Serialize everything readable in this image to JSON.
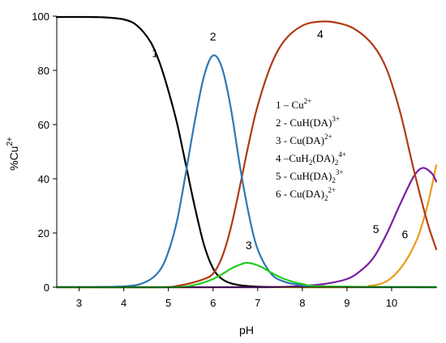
{
  "chart_data": {
    "type": "line",
    "xlabel": "pH",
    "ylabel_main": "%Cu",
    "ylabel_sup": "2+",
    "xlim": [
      2.5,
      11
    ],
    "ylim": [
      0,
      100
    ],
    "xticks": [
      3,
      4,
      5,
      6,
      7,
      8,
      9,
      10
    ],
    "yticks": [
      0,
      20,
      40,
      60,
      80,
      100
    ],
    "grid": false,
    "series": [
      {
        "id": "1",
        "color": "#000000",
        "x": [
          2.5,
          3.0,
          3.5,
          4.0,
          4.3,
          4.6,
          4.8,
          5.0,
          5.2,
          5.4,
          5.6,
          5.8,
          6.0,
          6.2,
          6.5,
          7.0,
          8.0,
          11.0
        ],
        "y": [
          99.7,
          99.7,
          99.6,
          98.8,
          96.5,
          90.5,
          83.0,
          72.5,
          60.0,
          44.5,
          29.0,
          15.5,
          7.0,
          3.0,
          1.0,
          0.2,
          0,
          0
        ]
      },
      {
        "id": "2",
        "color": "#2f77b3",
        "x": [
          2.5,
          4.0,
          4.5,
          4.8,
          5.0,
          5.2,
          5.4,
          5.6,
          5.8,
          6.0,
          6.2,
          6.4,
          6.6,
          6.8,
          7.0,
          7.3,
          7.6,
          8.0,
          8.5,
          11.0
        ],
        "y": [
          0,
          0.3,
          2.0,
          6.0,
          13.0,
          25.0,
          43.0,
          62.0,
          78.0,
          85.5,
          81.0,
          66.0,
          45.0,
          27.0,
          14.0,
          5.0,
          2.0,
          0.7,
          0.2,
          0
        ]
      },
      {
        "id": "3",
        "color": "#22cc22",
        "x": [
          2.5,
          5.0,
          5.5,
          5.8,
          6.0,
          6.2,
          6.4,
          6.6,
          6.75,
          6.9,
          7.1,
          7.3,
          7.6,
          8.0,
          8.5,
          11.0
        ],
        "y": [
          0,
          0,
          0.5,
          1.8,
          3.0,
          4.8,
          6.8,
          8.3,
          9.0,
          8.6,
          7.3,
          5.4,
          3.0,
          1.2,
          0.3,
          0
        ]
      },
      {
        "id": "4",
        "color": "#b03a12",
        "x": [
          2.5,
          4.8,
          5.2,
          5.5,
          5.8,
          6.0,
          6.2,
          6.4,
          6.6,
          6.8,
          7.0,
          7.3,
          7.6,
          8.0,
          8.4,
          8.8,
          9.2,
          9.6,
          9.9,
          10.2,
          10.5,
          10.8,
          11.0
        ],
        "y": [
          0,
          0,
          0.5,
          1.5,
          3.0,
          5.0,
          11.0,
          22.0,
          37.0,
          53.0,
          67.0,
          82.0,
          91.0,
          96.5,
          98.0,
          97.5,
          95.0,
          89.0,
          80.0,
          64.0,
          43.0,
          24.0,
          14.0
        ]
      },
      {
        "id": "5",
        "color": "#7b1fa2",
        "x": [
          2.5,
          7.0,
          8.0,
          8.5,
          9.0,
          9.3,
          9.6,
          9.9,
          10.2,
          10.5,
          10.7,
          10.9,
          11.0
        ],
        "y": [
          0,
          0,
          0.5,
          1.2,
          3.0,
          6.0,
          11.0,
          20.0,
          31.0,
          41.0,
          44.0,
          42.0,
          39.0
        ]
      },
      {
        "id": "6",
        "color": "#e69d1a",
        "x": [
          2.5,
          9.0,
          9.5,
          9.8,
          10.0,
          10.2,
          10.4,
          10.6,
          10.8,
          11.0
        ],
        "y": [
          0,
          0,
          0.5,
          1.5,
          3.5,
          7.0,
          12.0,
          19.0,
          30.0,
          45.0
        ]
      }
    ],
    "curve_labels": [
      {
        "text": "1",
        "x": 4.7,
        "y": 85
      },
      {
        "text": "2",
        "x": 6.0,
        "y": 91
      },
      {
        "text": "3",
        "x": 6.8,
        "y": 14
      },
      {
        "text": "4",
        "x": 8.4,
        "y": 92
      },
      {
        "text": "5",
        "x": 9.65,
        "y": 20
      },
      {
        "text": "6",
        "x": 10.3,
        "y": 18
      }
    ],
    "legend": [
      {
        "main": "1 – Cu",
        "sup": "2+"
      },
      {
        "main": "2 - CuH(DA)",
        "sup": "3+"
      },
      {
        "main": "3 - Cu(DA)",
        "sup": "2+"
      },
      {
        "main": "4 –CuH",
        "sub1": "2",
        "mid": "(DA)",
        "sub2": "2",
        "sup": "4+"
      },
      {
        "main": "5 - CuH(DA)",
        "sub2": "2",
        "sup": "3+"
      },
      {
        "main": "6 - Cu(DA)",
        "sub2": "2",
        "sup": "2+"
      }
    ]
  }
}
